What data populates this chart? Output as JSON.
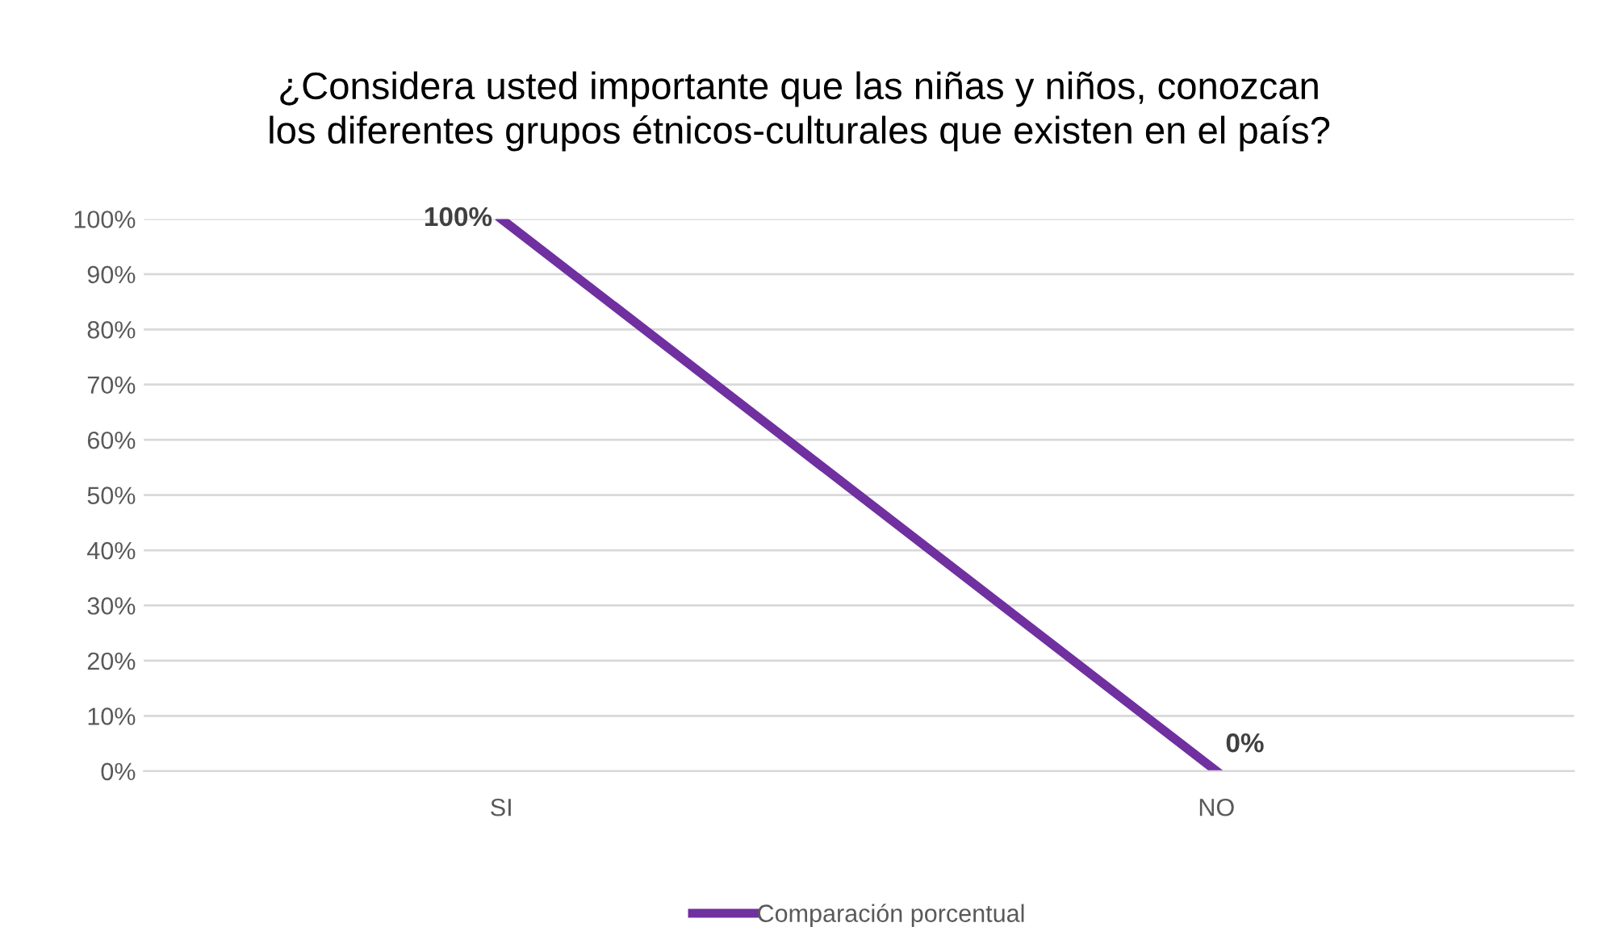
{
  "chart_data": {
    "type": "line",
    "title": "¿Considera usted importante que las niñas y niños, conozcan\nlos diferentes grupos étnicos-culturales que existen en el país?",
    "categories": [
      "SI",
      "NO"
    ],
    "series": [
      {
        "name": "Comparación porcentual",
        "color": "#7030a0",
        "values": [
          100,
          0
        ],
        "value_labels": [
          "100%",
          "0%"
        ]
      }
    ],
    "ylim": [
      0,
      100
    ],
    "yticks": [
      {
        "value": 0,
        "label": "0%"
      },
      {
        "value": 10,
        "label": "10%"
      },
      {
        "value": 20,
        "label": "20%"
      },
      {
        "value": 30,
        "label": "30%"
      },
      {
        "value": 40,
        "label": "40%"
      },
      {
        "value": 50,
        "label": "50%"
      },
      {
        "value": 60,
        "label": "60%"
      },
      {
        "value": 70,
        "label": "70%"
      },
      {
        "value": 80,
        "label": "80%"
      },
      {
        "value": 90,
        "label": "90%"
      },
      {
        "value": 100,
        "label": "100%"
      }
    ],
    "grid": "y",
    "legend": "bottom",
    "marker": "none",
    "line_style": "solid"
  }
}
